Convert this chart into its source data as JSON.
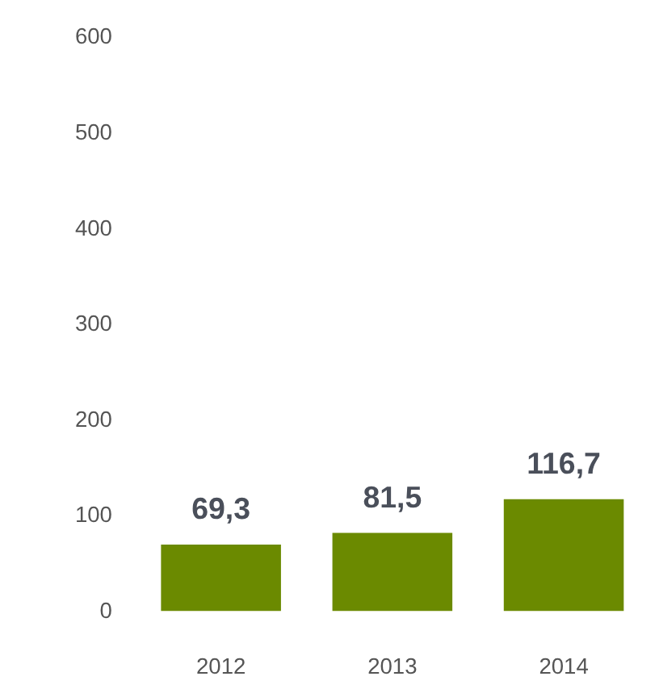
{
  "chart_data": {
    "type": "bar",
    "categories": [
      "2012",
      "2013",
      "2014"
    ],
    "values": [
      69.3,
      81.5,
      116.7
    ],
    "value_labels": [
      "69,3",
      "81,5",
      "116,7"
    ],
    "color": "#6b8a00",
    "ylim": [
      0,
      600
    ],
    "yticks": [
      0,
      100,
      200,
      300,
      400,
      500,
      600
    ],
    "grid": false
  }
}
